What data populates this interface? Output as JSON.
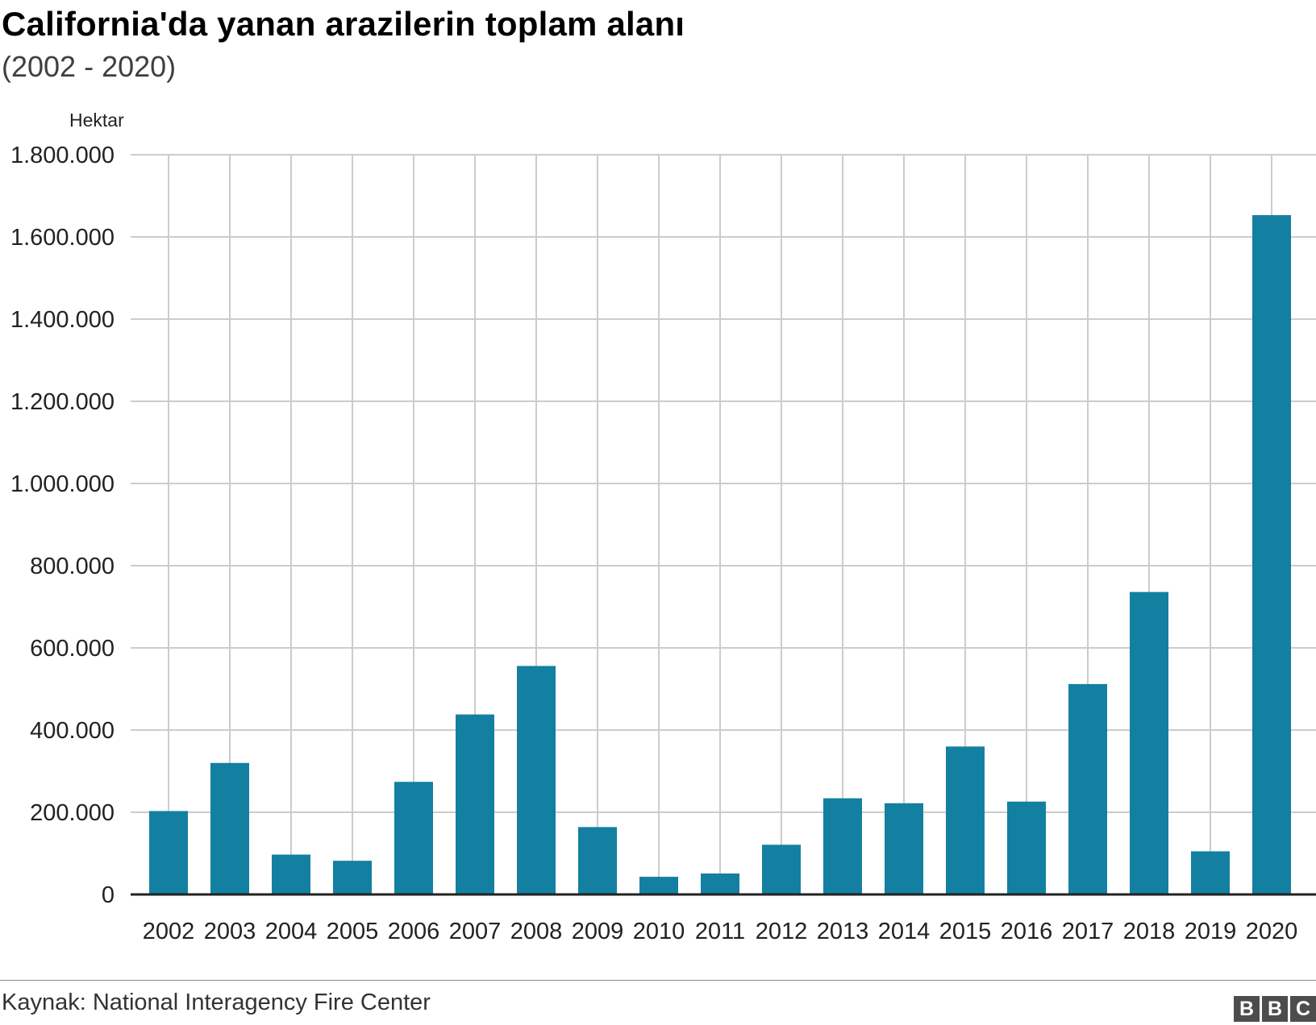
{
  "chart_data": {
    "type": "bar",
    "title": "California'da yanan arazilerin toplam alanı",
    "subtitle": "(2002 - 2020)",
    "ylabel": "Hektar",
    "xlabel": "",
    "ylim": [
      0,
      1800000
    ],
    "yticks": [
      0,
      200000,
      400000,
      600000,
      800000,
      1000000,
      1200000,
      1400000,
      1600000,
      1800000
    ],
    "ytick_labels": [
      "0",
      "200.000",
      "400.000",
      "600.000",
      "800.000",
      "1.000.000",
      "1.200.000",
      "1.400.000",
      "1.600.000",
      "1.800.000"
    ],
    "categories": [
      "2002",
      "2003",
      "2004",
      "2005",
      "2006",
      "2007",
      "2008",
      "2009",
      "2010",
      "2011",
      "2012",
      "2013",
      "2014",
      "2015",
      "2016",
      "2017",
      "2018",
      "2019",
      "2020"
    ],
    "values": [
      203000,
      320000,
      97000,
      82000,
      274000,
      438000,
      556000,
      164000,
      43000,
      51000,
      121000,
      234000,
      222000,
      360000,
      226000,
      512000,
      736000,
      105000,
      1653000
    ],
    "grid": true,
    "bar_color": "#1380a1",
    "source": "Kaynak: National Interagency Fire Center"
  },
  "logo": {
    "letters": [
      "B",
      "B",
      "C"
    ]
  }
}
